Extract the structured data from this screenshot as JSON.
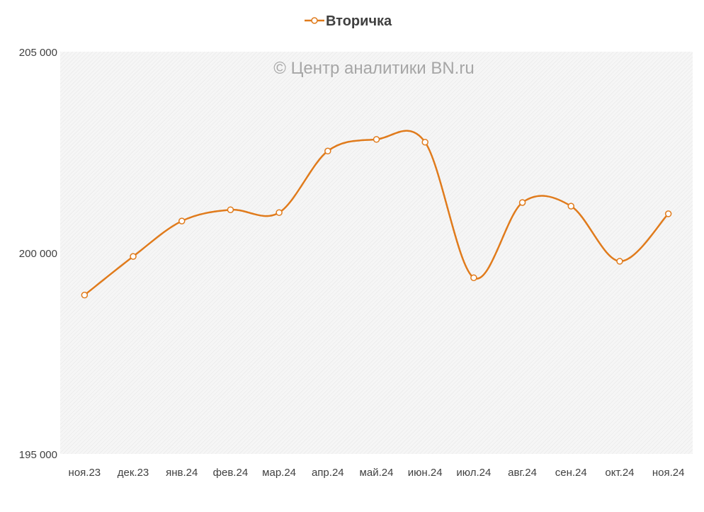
{
  "chart_data": {
    "type": "line",
    "title": "",
    "watermark": "© Центр аналитики BN.ru",
    "legend": {
      "position": "top-center",
      "entries": [
        "Вторичка"
      ]
    },
    "categories": [
      "ноя.23",
      "дек.23",
      "янв.24",
      "фев.24",
      "мар.24",
      "апр.24",
      "май.24",
      "июн.24",
      "июл.24",
      "авг.24",
      "сен.24",
      "окт.24",
      "ноя.24"
    ],
    "series": [
      {
        "name": "Вторичка",
        "color": "#e07b1c",
        "smooth": true,
        "values": [
          198950,
          199910,
          200790,
          201070,
          201000,
          202530,
          202820,
          202750,
          199380,
          201250,
          201160,
          199790,
          200970
        ]
      }
    ],
    "ylim": [
      195000,
      205000
    ],
    "yticks": [
      195000,
      200000,
      205000
    ],
    "ytick_labels": [
      "195 000",
      "200 000",
      "205 000"
    ],
    "xlabel": "",
    "ylabel": "",
    "grid": false
  }
}
